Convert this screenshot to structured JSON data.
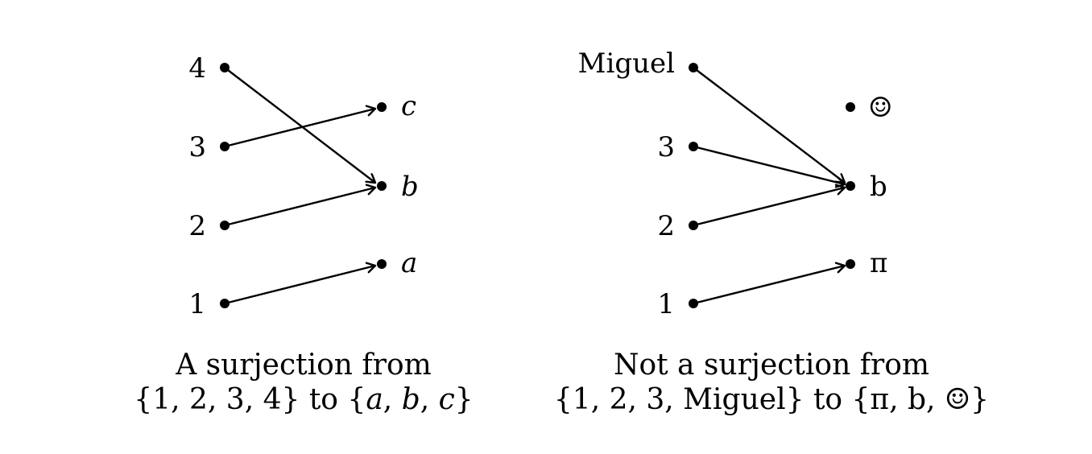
{
  "left": {
    "domain_labels": [
      "4",
      "3",
      "2",
      "1"
    ],
    "codomain_labels": [
      "c",
      "b",
      "a"
    ],
    "caption_line1": "A surjection from",
    "caption_line2": {
      "open1": "{1, 2, 3, 4}",
      "to": " to ",
      "open2": "{",
      "a": "a",
      "c1": ", ",
      "b": "b",
      "c2": ", ",
      "c": "c",
      "close2": "}"
    }
  },
  "right": {
    "domain_labels": [
      "Miguel",
      "3",
      "2",
      "1"
    ],
    "codomain_labels": [
      "☺",
      "b",
      "π"
    ],
    "caption_line1": "Not a surjection from",
    "caption_line2": "{1, 2, 3, Miguel} to {π, b, ☺}"
  }
}
